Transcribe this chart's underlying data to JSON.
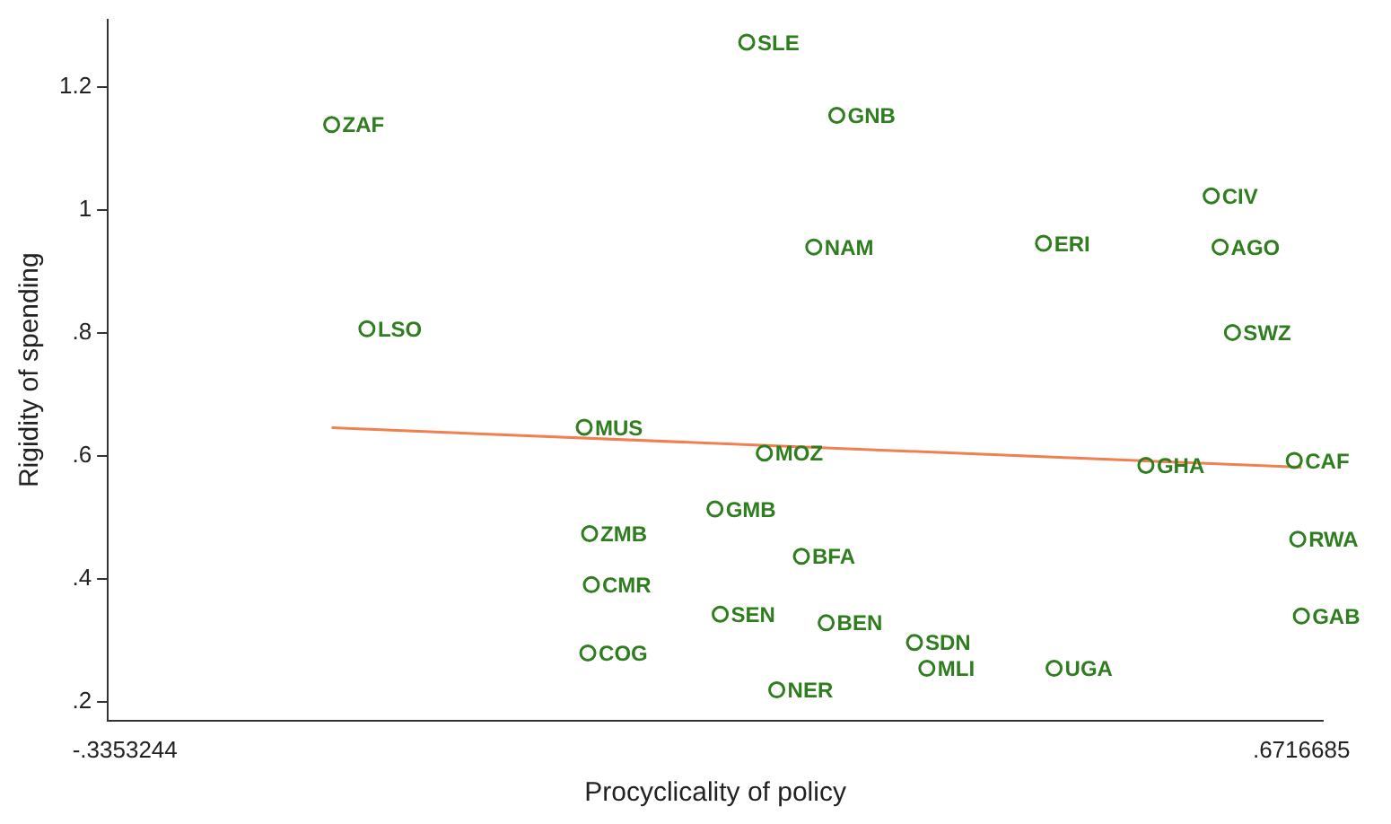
{
  "chart_data": {
    "type": "scatter",
    "xlabel": "Procyclicality of policy",
    "ylabel": "Rigidity of spending",
    "xlim": [
      -0.35,
      0.69
    ],
    "xticks": [
      {
        "value": -0.3353244,
        "label": "-.3353244"
      },
      {
        "value": 0.6716685,
        "label": ".6716685"
      }
    ],
    "ylim": [
      0.17,
      1.31
    ],
    "yticks": [
      {
        "value": 0.2,
        "label": ".2"
      },
      {
        "value": 0.4,
        "label": ".4"
      },
      {
        "value": 0.6,
        "label": ".6"
      },
      {
        "value": 0.8,
        "label": ".8"
      },
      {
        "value": 1,
        "label": "1"
      },
      {
        "value": 1.2,
        "label": "1.2"
      }
    ],
    "grid": false,
    "legend": false,
    "marker": "circle",
    "series": [
      {
        "color": "#2e7d1e",
        "x": [
          -0.1584,
          -0.1282,
          0.1969,
          0.274,
          0.2543,
          0.4509,
          0.5945,
          0.6021,
          0.6127,
          0.0578,
          0.212,
          0.5386,
          0.6656,
          0.1697,
          0.0624,
          0.2437,
          0.6686,
          0.0639,
          0.1742,
          0.2649,
          0.3405,
          0.6716685,
          0.0609,
          0.3511,
          0.46,
          0.2226
        ],
        "values": [
          1.139,
          0.807,
          1.273,
          1.154,
          0.94,
          0.946,
          1.023,
          0.94,
          0.801,
          0.647,
          0.605,
          0.585,
          0.593,
          0.514,
          0.474,
          0.437,
          0.465,
          0.391,
          0.343,
          0.329,
          0.297,
          0.34,
          0.28,
          0.255,
          0.255,
          0.22
        ]
      },
      {
        "type": "line",
        "color": "#f08050",
        "marker": "none",
        "x": [
          -0.1584,
          0.6716685
        ],
        "values": [
          0.646,
          0.582
        ]
      }
    ],
    "annotations": [
      {
        "text": "ZAF",
        "x": -0.1584,
        "y": 1.139
      },
      {
        "text": "LSO",
        "x": -0.1282,
        "y": 0.807
      },
      {
        "text": "SLE",
        "x": 0.1969,
        "y": 1.273
      },
      {
        "text": "GNB",
        "x": 0.274,
        "y": 1.154
      },
      {
        "text": "NAM",
        "x": 0.2543,
        "y": 0.94
      },
      {
        "text": "ERI",
        "x": 0.4509,
        "y": 0.946
      },
      {
        "text": "CIV",
        "x": 0.5945,
        "y": 1.023
      },
      {
        "text": "AGO",
        "x": 0.6021,
        "y": 0.94
      },
      {
        "text": "SWZ",
        "x": 0.6127,
        "y": 0.801
      },
      {
        "text": "MUS",
        "x": 0.0578,
        "y": 0.647
      },
      {
        "text": "MOZ",
        "x": 0.212,
        "y": 0.605
      },
      {
        "text": "GHA",
        "x": 0.5386,
        "y": 0.585
      },
      {
        "text": "CAF",
        "x": 0.6656,
        "y": 0.593
      },
      {
        "text": "GMB",
        "x": 0.1697,
        "y": 0.514
      },
      {
        "text": "ZMB",
        "x": 0.0624,
        "y": 0.474
      },
      {
        "text": "BFA",
        "x": 0.2437,
        "y": 0.437
      },
      {
        "text": "RWA",
        "x": 0.6686,
        "y": 0.465
      },
      {
        "text": "CMR",
        "x": 0.0639,
        "y": 0.391
      },
      {
        "text": "SEN",
        "x": 0.1742,
        "y": 0.343
      },
      {
        "text": "BEN",
        "x": 0.2649,
        "y": 0.329
      },
      {
        "text": "SDN",
        "x": 0.3405,
        "y": 0.297
      },
      {
        "text": "GAB",
        "x": 0.6716685,
        "y": 0.34
      },
      {
        "text": "COG",
        "x": 0.0609,
        "y": 0.28
      },
      {
        "text": "MLI",
        "x": 0.3511,
        "y": 0.255
      },
      {
        "text": "UGA",
        "x": 0.46,
        "y": 0.255
      },
      {
        "text": "NER",
        "x": 0.2226,
        "y": 0.22
      }
    ]
  }
}
